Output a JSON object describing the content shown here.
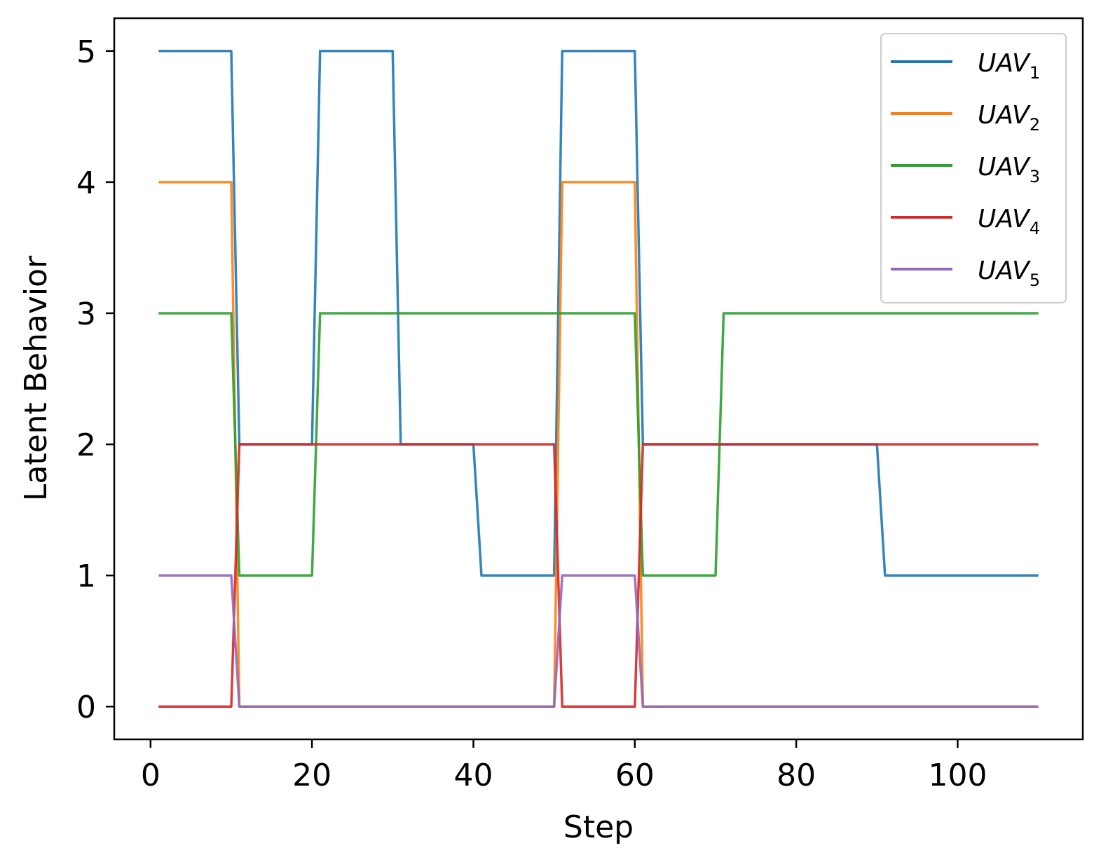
{
  "chart_data": {
    "type": "line",
    "title": "",
    "xlabel": "Step",
    "ylabel": "Latent Behavior",
    "xlim": [
      -4.5,
      115.5
    ],
    "ylim": [
      -0.25,
      5.25
    ],
    "xticks": [
      0,
      20,
      40,
      60,
      80,
      100
    ],
    "yticks": [
      0,
      1,
      2,
      3,
      4,
      5
    ],
    "legend_position": "top-right",
    "series": [
      {
        "name": "UAV",
        "subscript": "1",
        "color": "#1f77b4",
        "x": [
          1,
          10,
          11,
          20,
          21,
          30,
          31,
          40,
          41,
          50,
          51,
          60,
          61,
          90,
          91,
          110
        ],
        "y": [
          5,
          5,
          2,
          2,
          5,
          5,
          2,
          2,
          1,
          1,
          5,
          5,
          2,
          2,
          1,
          1
        ]
      },
      {
        "name": "UAV",
        "subscript": "2",
        "color": "#ff7f0e",
        "x": [
          1,
          10,
          11,
          50,
          51,
          60,
          61,
          110
        ],
        "y": [
          4,
          4,
          0,
          0,
          4,
          4,
          0,
          0
        ]
      },
      {
        "name": "UAV",
        "subscript": "3",
        "color": "#2ca02c",
        "x": [
          1,
          10,
          11,
          20,
          21,
          60,
          61,
          70,
          71,
          110
        ],
        "y": [
          3,
          3,
          1,
          1,
          3,
          3,
          1,
          1,
          3,
          3
        ]
      },
      {
        "name": "UAV",
        "subscript": "4",
        "color": "#d62728",
        "x": [
          1,
          10,
          11,
          50,
          51,
          60,
          61,
          110
        ],
        "y": [
          0,
          0,
          2,
          2,
          0,
          0,
          2,
          2
        ]
      },
      {
        "name": "UAV",
        "subscript": "5",
        "color": "#9467bd",
        "x": [
          1,
          10,
          11,
          50,
          51,
          60,
          61,
          110
        ],
        "y": [
          1,
          1,
          0,
          0,
          1,
          1,
          0,
          0
        ]
      }
    ]
  }
}
